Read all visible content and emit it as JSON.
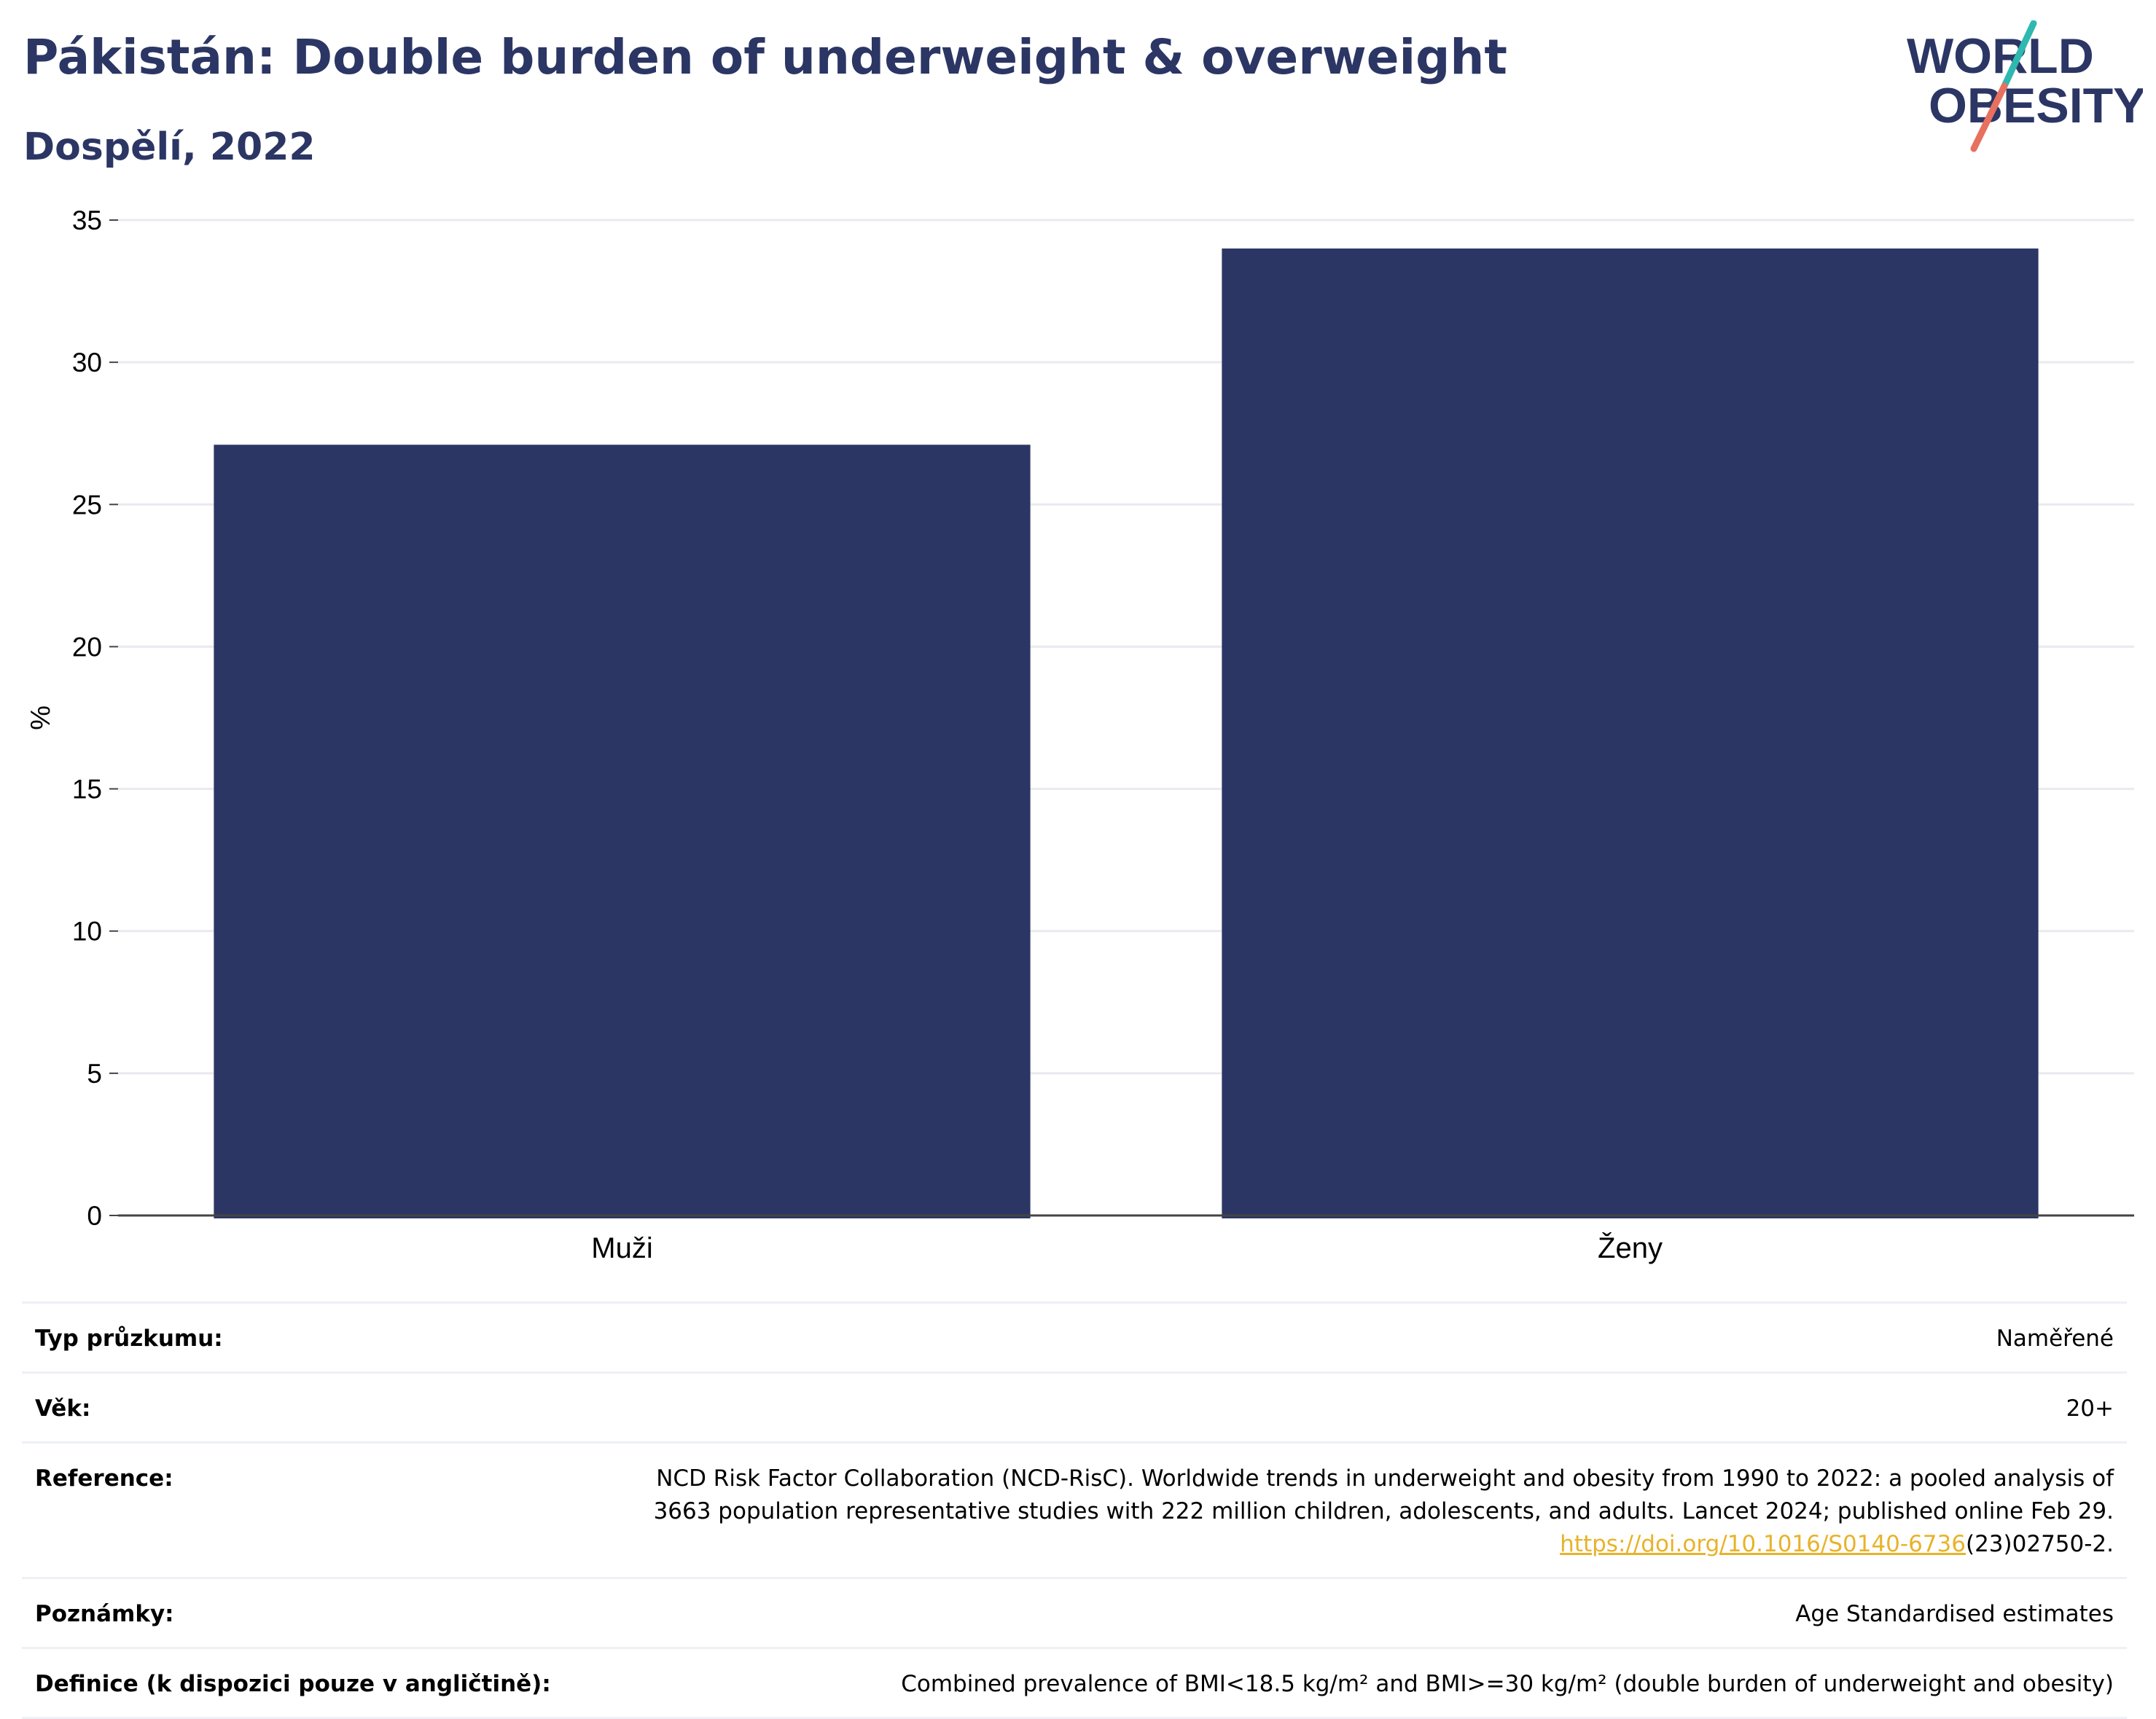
{
  "header": {
    "title": "Pákistán: Double burden of underweight & overweight",
    "subtitle": "Dospělí, 2022"
  },
  "logo": {
    "line1": "WORLD",
    "line2": "OBESITY"
  },
  "colors": {
    "bar": "#2b3664",
    "title": "#2b3664",
    "grid": "#e8eaf0",
    "logo_teal": "#2fb8b0",
    "logo_coral": "#e8705f",
    "link": "#e8b32a"
  },
  "chart_data": {
    "type": "bar",
    "title": "Pákistán: Double burden of underweight & overweight",
    "subtitle": "Dospělí, 2022",
    "categories": [
      "Muži",
      "Ženy"
    ],
    "values": [
      27.1,
      34.0
    ],
    "xlabel": "",
    "ylabel": "%",
    "ylim": [
      0,
      35
    ],
    "yticks": [
      0,
      5,
      10,
      15,
      20,
      25,
      30,
      35
    ],
    "grid": true,
    "legend": "none"
  },
  "meta": {
    "survey_type_label": "Typ průzkumu:",
    "survey_type_value": "Naměřené",
    "age_label": "Věk:",
    "age_value": "20+",
    "reference_label": "Reference:",
    "reference_line1": "NCD Risk Factor Collaboration (NCD-RisC). Worldwide trends in underweight and obesity from 1990 to 2022: a pooled analysis of",
    "reference_line2": "3663 population representative studies with 222 million children, adolescents, and adults. Lancet 2024; published online Feb 29.",
    "reference_link": "https://doi.org/10.1016/S0140-6736",
    "reference_suffix": "(23)02750-2.",
    "notes_label": "Poznámky:",
    "notes_value": "Age Standardised estimates",
    "definition_label": "Definice (k dispozici pouze v angličtině):",
    "definition_value": "Combined prevalence of BMI<18.5 kg/m² and BMI>=30 kg/m² (double burden of underweight and obesity)"
  }
}
